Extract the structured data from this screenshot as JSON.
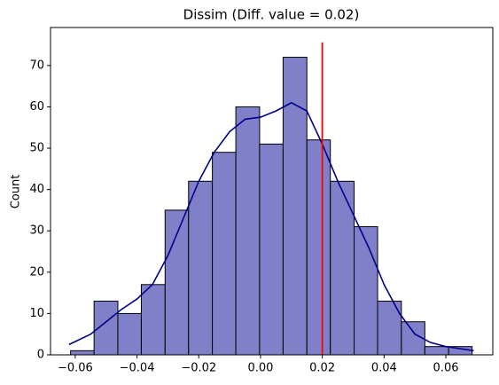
{
  "chart_data": {
    "type": "histogram",
    "title": "Dissim (Diff. value = 0.02)",
    "ylabel": "Count",
    "bins": [
      -0.0615,
      -0.0539,
      -0.0462,
      -0.0386,
      -0.0309,
      -0.0233,
      -0.0156,
      -0.008,
      -0.0003,
      0.0073,
      0.015,
      0.0226,
      0.0303,
      0.0379,
      0.0456,
      0.0532,
      0.0609,
      0.0685
    ],
    "values": [
      1,
      13,
      10,
      17,
      35,
      42,
      49,
      60,
      51,
      72,
      52,
      42,
      31,
      13,
      8,
      2,
      2
    ],
    "color": "#8080c8",
    "kde": {
      "color": "#00008b",
      "x": [
        -0.062,
        -0.055,
        -0.05,
        -0.045,
        -0.04,
        -0.035,
        -0.03,
        -0.025,
        -0.02,
        -0.015,
        -0.01,
        -0.005,
        0,
        0.005,
        0.01,
        0.015,
        0.02,
        0.025,
        0.03,
        0.035,
        0.04,
        0.045,
        0.05,
        0.055,
        0.06,
        0.069
      ],
      "values": [
        2.5,
        5,
        8,
        11,
        13.5,
        17,
        24,
        33,
        42,
        49,
        54,
        57,
        57.5,
        59,
        61,
        59,
        51,
        42,
        34,
        26,
        17,
        10,
        5,
        3,
        2,
        1
      ]
    },
    "reference_line": {
      "x": 0.02,
      "ymax": 75.6,
      "color": "#ff0000"
    },
    "xlim": [
      -0.068,
      0.0752
    ],
    "ylim": [
      0,
      79.2
    ],
    "xticks": [
      {
        "value": -0.06,
        "label": "−0.06"
      },
      {
        "value": -0.04,
        "label": "−0.04"
      },
      {
        "value": -0.02,
        "label": "−0.02"
      },
      {
        "value": 0,
        "label": "0.00"
      },
      0.02,
      0.04,
      0.06
    ],
    "yticks": [
      0,
      10,
      20,
      30,
      40,
      50,
      60,
      70
    ]
  }
}
